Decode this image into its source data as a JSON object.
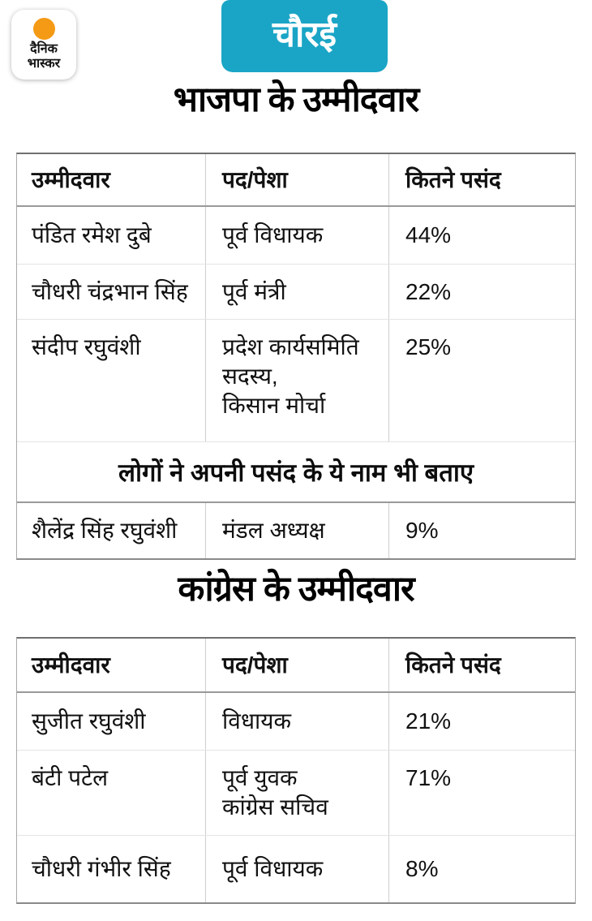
{
  "brand": {
    "logo_line1": "दैनिक",
    "logo_line2": "भास्कर",
    "dot_color": "#f49a15"
  },
  "badge": {
    "label": "चौरई",
    "bg_color": "#1aa5c6"
  },
  "sections": [
    {
      "title": "भाजपा के उम्मीदवार",
      "columns": [
        "उम्मीदवार",
        "पद/पेशा",
        "कितने पसंद"
      ],
      "rows": [
        {
          "name": "पंडित रमेश दुबे",
          "role": "पूर्व विधायक",
          "percent": "44%"
        },
        {
          "name": "चौधरी चंद्रभान सिंह",
          "role": "पूर्व मंत्री",
          "percent": "22%"
        },
        {
          "name": "संदीप रघुवंशी",
          "role": "प्रदेश कार्यसमिति सदस्य,\nकिसान मोर्चा",
          "percent": "25%"
        }
      ],
      "note": "लोगों ने अपनी पसंद के ये नाम भी बताए",
      "note_rows": [
        {
          "name": "शैलेंद्र सिंह रघुवंशी",
          "role": "मंडल अध्यक्ष",
          "percent": "9%"
        }
      ]
    },
    {
      "title": "कांग्रेस के उम्मीदवार",
      "columns": [
        "उम्मीदवार",
        "पद/पेशा",
        "कितने पसंद"
      ],
      "rows": [
        {
          "name": "सुजीत रघुवंशी",
          "role": "विधायक",
          "percent": "21%"
        },
        {
          "name": "बंटी पटेल",
          "role": "पूर्व युवक\nकांग्रेस सचिव",
          "percent": "71%"
        },
        {
          "name": "चौधरी गंभीर सिंह",
          "role": "पूर्व विधायक",
          "percent": "8%"
        }
      ]
    }
  ]
}
